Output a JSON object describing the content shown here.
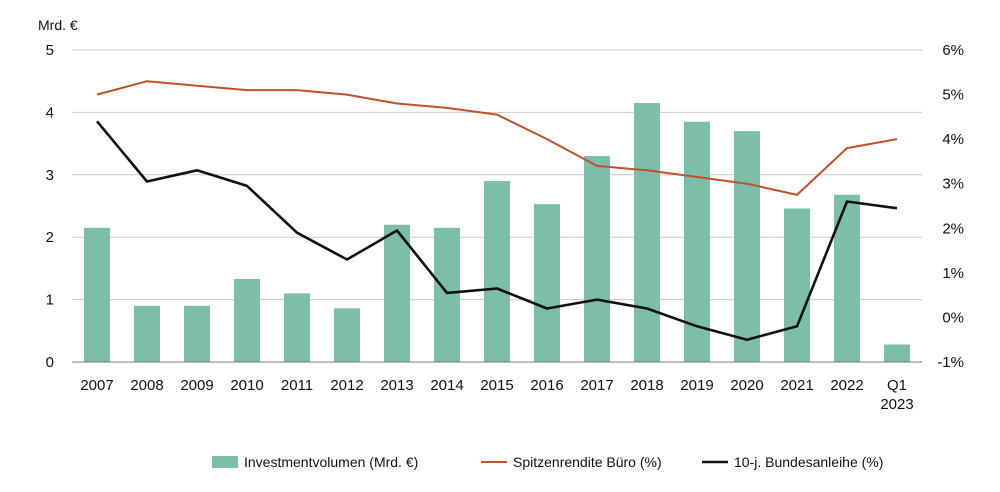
{
  "chart_data": {
    "type": "bar+line",
    "y_left_unit": "Mrd. €",
    "categories": [
      "2007",
      "2008",
      "2009",
      "2010",
      "2011",
      "2012",
      "2013",
      "2014",
      "2015",
      "2016",
      "2017",
      "2018",
      "2019",
      "2020",
      "2021",
      "2022",
      "Q1 2023"
    ],
    "bars": {
      "name": "Investmentvolumen (Mrd. €)",
      "color": "#7bbfab",
      "axis": "left",
      "values": [
        2.15,
        0.9,
        0.9,
        1.33,
        1.1,
        0.86,
        2.2,
        2.15,
        2.9,
        2.53,
        3.3,
        4.15,
        3.85,
        3.7,
        2.46,
        2.68,
        0.28
      ]
    },
    "series": [
      {
        "name": "Spitzenrendite Büro (%)",
        "color": "#c0522b",
        "axis": "right",
        "values": [
          5.0,
          5.3,
          5.2,
          5.1,
          5.1,
          5.0,
          4.8,
          4.7,
          4.55,
          4.0,
          3.4,
          3.3,
          3.15,
          3.0,
          2.75,
          3.8,
          4.0
        ]
      },
      {
        "name": "10-j. Bundesanleihe (%)",
        "color": "#111111",
        "axis": "right",
        "values": [
          4.4,
          3.05,
          3.3,
          2.95,
          1.9,
          1.3,
          1.95,
          0.55,
          0.65,
          0.2,
          0.4,
          0.2,
          -0.2,
          -0.5,
          -0.2,
          2.6,
          2.45
        ]
      }
    ],
    "y_left": {
      "min": 0,
      "max": 5,
      "ticks": [
        "0",
        "1",
        "2",
        "3",
        "4",
        "5"
      ]
    },
    "y_right": {
      "min": -1,
      "max": 6,
      "ticks": [
        "-1%",
        "0%",
        "1%",
        "2%",
        "3%",
        "4%",
        "5%",
        "6%"
      ]
    },
    "grid": true,
    "legend_position": "bottom"
  }
}
